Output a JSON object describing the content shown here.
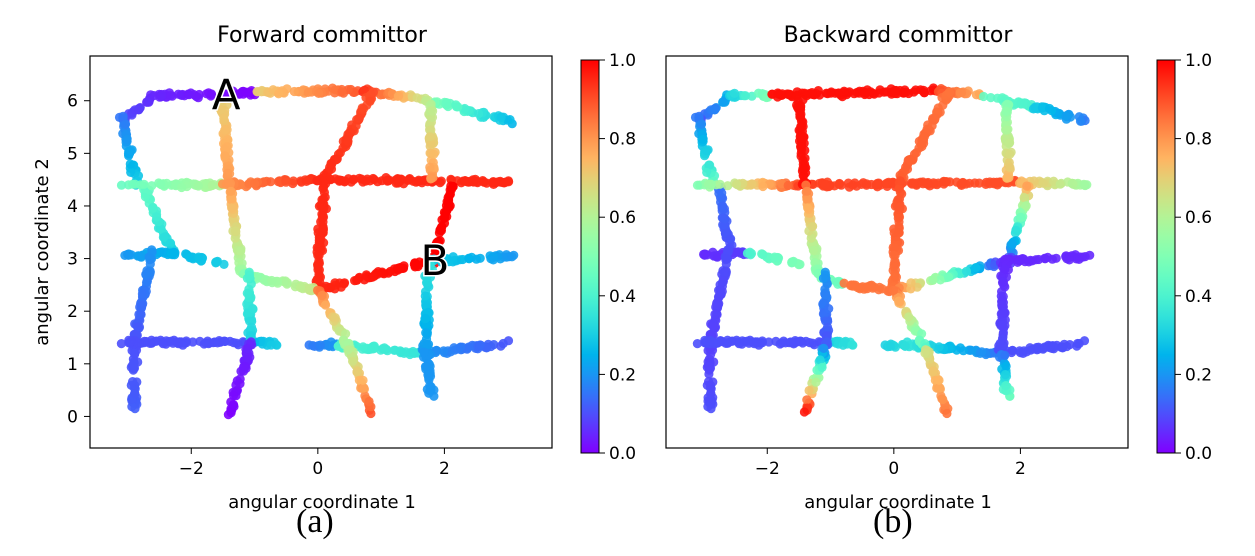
{
  "chart_data": [
    {
      "type": "scatter",
      "panel": "(a)",
      "title": "Forward committor",
      "xlabel": "angular coordinate 1",
      "ylabel": "angular coordinate 2",
      "xlim": [
        -3.6,
        3.7
      ],
      "ylim": [
        -0.6,
        6.85
      ],
      "xticks": [
        -2,
        0,
        2
      ],
      "xtick_labels": [
        "−2",
        "0",
        "2"
      ],
      "yticks": [
        0,
        1,
        2,
        3,
        4,
        5,
        6
      ],
      "ytick_labels": [
        "0",
        "1",
        "2",
        "3",
        "4",
        "5",
        "6"
      ],
      "colorbar": {
        "range": [
          0,
          1
        ],
        "ticks": [
          "0.0",
          "0.2",
          "0.4",
          "0.6",
          "0.8",
          "1.0"
        ],
        "colormap": "rainbow"
      },
      "grid": false,
      "annotations": [
        {
          "text": "A",
          "x": -1.45,
          "y": 6.1
        },
        {
          "text": "B",
          "x": 1.85,
          "y": 2.95
        }
      ],
      "segments": [
        {
          "from": [
            -3.1,
            5.6
          ],
          "to": [
            -2.6,
            6.1
          ],
          "c": [
            0.1,
            0.05
          ]
        },
        {
          "from": [
            -2.6,
            6.1
          ],
          "to": [
            -1.0,
            6.15
          ],
          "c": [
            0.05,
            0.0
          ]
        },
        {
          "from": [
            -1.0,
            6.15
          ],
          "to": [
            0.7,
            6.2
          ],
          "c": [
            0.7,
            0.9
          ]
        },
        {
          "from": [
            0.7,
            6.2
          ],
          "to": [
            1.8,
            6.0
          ],
          "c": [
            0.95,
            0.6
          ]
        },
        {
          "from": [
            1.8,
            6.0
          ],
          "to": [
            3.1,
            5.6
          ],
          "c": [
            0.5,
            0.25
          ]
        },
        {
          "from": [
            -3.1,
            5.7
          ],
          "to": [
            -2.85,
            4.4
          ],
          "c": [
            0.15,
            0.3
          ]
        },
        {
          "from": [
            -2.75,
            4.4
          ],
          "to": [
            -2.3,
            3.1
          ],
          "c": [
            0.45,
            0.3
          ]
        },
        {
          "from": [
            -3.1,
            4.4
          ],
          "to": [
            -1.5,
            4.4
          ],
          "c": [
            0.45,
            0.6
          ]
        },
        {
          "from": [
            -1.5,
            4.4
          ],
          "to": [
            0.0,
            4.5
          ],
          "c": [
            0.8,
            0.95
          ]
        },
        {
          "from": [
            0.0,
            4.5
          ],
          "to": [
            3.1,
            4.45
          ],
          "c": [
            0.95,
            0.95
          ]
        },
        {
          "from": [
            0.9,
            6.2
          ],
          "to": [
            0.1,
            4.5
          ],
          "c": [
            0.9,
            0.95
          ]
        },
        {
          "from": [
            0.1,
            4.5
          ],
          "to": [
            0.0,
            2.4
          ],
          "c": [
            0.95,
            0.95
          ]
        },
        {
          "from": [
            2.15,
            4.45
          ],
          "to": [
            1.8,
            2.9
          ],
          "c": [
            1.0,
            1.0
          ]
        },
        {
          "from": [
            1.8,
            6.0
          ],
          "to": [
            1.8,
            4.5
          ],
          "c": [
            0.6,
            0.8
          ]
        },
        {
          "from": [
            -1.5,
            6.0
          ],
          "to": [
            -1.4,
            4.4
          ],
          "c": [
            0.7,
            0.8
          ]
        },
        {
          "from": [
            -1.4,
            4.4
          ],
          "to": [
            -1.2,
            2.7
          ],
          "c": [
            0.8,
            0.55
          ]
        },
        {
          "from": [
            -1.2,
            2.7
          ],
          "to": [
            0.0,
            2.4
          ],
          "c": [
            0.5,
            0.65
          ]
        },
        {
          "from": [
            0.0,
            2.4
          ],
          "to": [
            1.75,
            2.95
          ],
          "c": [
            0.95,
            1.0
          ]
        },
        {
          "from": [
            1.75,
            2.95
          ],
          "to": [
            3.1,
            3.05
          ],
          "c": [
            0.3,
            0.2
          ]
        },
        {
          "from": [
            -3.1,
            3.05
          ],
          "to": [
            -2.3,
            3.1
          ],
          "c": [
            0.2,
            0.25
          ]
        },
        {
          "from": [
            -2.3,
            3.1
          ],
          "to": [
            -1.5,
            2.9
          ],
          "c": [
            0.25,
            0.3
          ]
        },
        {
          "from": [
            -2.6,
            3.2
          ],
          "to": [
            -2.9,
            1.4
          ],
          "c": [
            0.2,
            0.1
          ]
        },
        {
          "from": [
            -2.9,
            1.4
          ],
          "to": [
            -2.9,
            0.15
          ],
          "c": [
            0.1,
            0.12
          ]
        },
        {
          "from": [
            -3.1,
            1.42
          ],
          "to": [
            -1.1,
            1.4
          ],
          "c": [
            0.1,
            0.1
          ]
        },
        {
          "from": [
            -1.1,
            1.4
          ],
          "to": [
            -0.6,
            1.4
          ],
          "c": [
            0.25,
            0.3
          ]
        },
        {
          "from": [
            -1.1,
            2.7
          ],
          "to": [
            -1.05,
            1.4
          ],
          "c": [
            0.4,
            0.3
          ]
        },
        {
          "from": [
            -1.05,
            1.4
          ],
          "to": [
            -1.4,
            0.05
          ],
          "c": [
            0.05,
            0.0
          ]
        },
        {
          "from": [
            -0.2,
            1.35
          ],
          "to": [
            0.3,
            1.35
          ],
          "c": [
            0.15,
            0.2
          ]
        },
        {
          "from": [
            0.3,
            1.35
          ],
          "to": [
            1.7,
            1.2
          ],
          "c": [
            0.4,
            0.35
          ]
        },
        {
          "from": [
            1.7,
            1.2
          ],
          "to": [
            3.1,
            1.4
          ],
          "c": [
            0.2,
            0.1
          ]
        },
        {
          "from": [
            0.0,
            2.4
          ],
          "to": [
            0.5,
            1.3
          ],
          "c": [
            0.85,
            0.55
          ]
        },
        {
          "from": [
            0.5,
            1.3
          ],
          "to": [
            0.85,
            0.05
          ],
          "c": [
            0.6,
            0.9
          ]
        },
        {
          "from": [
            1.75,
            2.9
          ],
          "to": [
            1.7,
            1.2
          ],
          "c": [
            0.35,
            0.2
          ]
        },
        {
          "from": [
            1.7,
            1.2
          ],
          "to": [
            1.8,
            0.3
          ],
          "c": [
            0.2,
            0.2
          ]
        }
      ]
    },
    {
      "type": "scatter",
      "panel": "(b)",
      "title": "Backward committor",
      "xlabel": "angular coordinate 1",
      "ylabel": "",
      "xlim": [
        -3.6,
        3.7
      ],
      "ylim": [
        -0.6,
        6.85
      ],
      "xticks": [
        -2,
        0,
        2
      ],
      "xtick_labels": [
        "−2",
        "0",
        "2"
      ],
      "yticks": [],
      "colorbar": {
        "range": [
          0,
          1
        ],
        "ticks": [
          "0.0",
          "0.2",
          "0.4",
          "0.6",
          "0.8",
          "1.0"
        ],
        "colormap": "rainbow"
      },
      "grid": false,
      "annotations": [],
      "segments": [
        {
          "from": [
            -3.1,
            5.6
          ],
          "to": [
            -2.6,
            6.1
          ],
          "c": [
            0.1,
            0.25
          ]
        },
        {
          "from": [
            -2.6,
            6.1
          ],
          "to": [
            -2.0,
            6.1
          ],
          "c": [
            0.3,
            0.5
          ]
        },
        {
          "from": [
            -2.0,
            6.1
          ],
          "to": [
            0.7,
            6.2
          ],
          "c": [
            0.98,
            0.98
          ]
        },
        {
          "from": [
            0.7,
            6.2
          ],
          "to": [
            1.4,
            6.1
          ],
          "c": [
            0.9,
            0.75
          ]
        },
        {
          "from": [
            1.4,
            6.1
          ],
          "to": [
            2.2,
            5.9
          ],
          "c": [
            0.45,
            0.4
          ]
        },
        {
          "from": [
            2.2,
            5.9
          ],
          "to": [
            3.1,
            5.6
          ],
          "c": [
            0.3,
            0.15
          ]
        },
        {
          "from": [
            -3.1,
            5.7
          ],
          "to": [
            -2.85,
            4.4
          ],
          "c": [
            0.15,
            0.45
          ]
        },
        {
          "from": [
            -2.75,
            4.4
          ],
          "to": [
            -2.6,
            3.2
          ],
          "c": [
            0.15,
            0.1
          ]
        },
        {
          "from": [
            -3.1,
            4.4
          ],
          "to": [
            -1.5,
            4.4
          ],
          "c": [
            0.5,
            0.9
          ]
        },
        {
          "from": [
            -1.5,
            4.4
          ],
          "to": [
            2.0,
            4.45
          ],
          "c": [
            0.92,
            0.9
          ]
        },
        {
          "from": [
            2.0,
            4.45
          ],
          "to": [
            3.1,
            4.4
          ],
          "c": [
            0.75,
            0.55
          ]
        },
        {
          "from": [
            0.9,
            6.2
          ],
          "to": [
            0.1,
            4.5
          ],
          "c": [
            0.85,
            0.88
          ]
        },
        {
          "from": [
            0.1,
            4.5
          ],
          "to": [
            0.0,
            2.4
          ],
          "c": [
            0.9,
            0.85
          ]
        },
        {
          "from": [
            2.15,
            4.45
          ],
          "to": [
            1.8,
            2.9
          ],
          "c": [
            0.8,
            0.05
          ]
        },
        {
          "from": [
            1.8,
            6.0
          ],
          "to": [
            1.8,
            4.5
          ],
          "c": [
            0.5,
            0.75
          ]
        },
        {
          "from": [
            -1.5,
            6.1
          ],
          "to": [
            -1.4,
            4.4
          ],
          "c": [
            0.98,
            0.98
          ]
        },
        {
          "from": [
            -1.4,
            4.4
          ],
          "to": [
            -1.2,
            2.7
          ],
          "c": [
            0.85,
            0.5
          ]
        },
        {
          "from": [
            -1.2,
            2.7
          ],
          "to": [
            -0.8,
            2.5
          ],
          "c": [
            0.5,
            0.45
          ]
        },
        {
          "from": [
            -0.8,
            2.5
          ],
          "to": [
            0.0,
            2.4
          ],
          "c": [
            0.85,
            0.85
          ]
        },
        {
          "from": [
            0.0,
            2.4
          ],
          "to": [
            1.75,
            2.95
          ],
          "c": [
            0.85,
            0.05
          ]
        },
        {
          "from": [
            1.75,
            2.95
          ],
          "to": [
            3.1,
            3.05
          ],
          "c": [
            0.05,
            0.05
          ]
        },
        {
          "from": [
            -3.1,
            3.05
          ],
          "to": [
            -2.3,
            3.1
          ],
          "c": [
            0.05,
            0.08
          ]
        },
        {
          "from": [
            -2.3,
            3.1
          ],
          "to": [
            -1.5,
            2.9
          ],
          "c": [
            0.4,
            0.5
          ]
        },
        {
          "from": [
            -2.6,
            3.2
          ],
          "to": [
            -2.9,
            1.4
          ],
          "c": [
            0.1,
            0.08
          ]
        },
        {
          "from": [
            -2.9,
            1.4
          ],
          "to": [
            -2.9,
            0.15
          ],
          "c": [
            0.08,
            0.1
          ]
        },
        {
          "from": [
            -3.1,
            1.42
          ],
          "to": [
            -1.1,
            1.4
          ],
          "c": [
            0.1,
            0.1
          ]
        },
        {
          "from": [
            -1.1,
            1.4
          ],
          "to": [
            -0.6,
            1.4
          ],
          "c": [
            0.3,
            0.35
          ]
        },
        {
          "from": [
            -1.1,
            2.7
          ],
          "to": [
            -1.05,
            1.4
          ],
          "c": [
            0.2,
            0.1
          ]
        },
        {
          "from": [
            -1.05,
            1.4
          ],
          "to": [
            -1.4,
            0.1
          ],
          "c": [
            0.1,
            0.98
          ]
        },
        {
          "from": [
            -0.2,
            1.35
          ],
          "to": [
            0.3,
            1.35
          ],
          "c": [
            0.3,
            0.35
          ]
        },
        {
          "from": [
            0.3,
            1.35
          ],
          "to": [
            1.7,
            1.2
          ],
          "c": [
            0.35,
            0.15
          ]
        },
        {
          "from": [
            1.7,
            1.2
          ],
          "to": [
            3.1,
            1.4
          ],
          "c": [
            0.1,
            0.1
          ]
        },
        {
          "from": [
            0.0,
            2.4
          ],
          "to": [
            0.5,
            1.3
          ],
          "c": [
            0.85,
            0.4
          ]
        },
        {
          "from": [
            0.5,
            1.3
          ],
          "to": [
            0.85,
            0.05
          ],
          "c": [
            0.65,
            0.85
          ]
        },
        {
          "from": [
            1.75,
            2.9
          ],
          "to": [
            1.7,
            1.2
          ],
          "c": [
            0.05,
            0.1
          ]
        },
        {
          "from": [
            1.7,
            1.2
          ],
          "to": [
            1.8,
            0.3
          ],
          "c": [
            0.15,
            0.5
          ]
        }
      ]
    }
  ]
}
